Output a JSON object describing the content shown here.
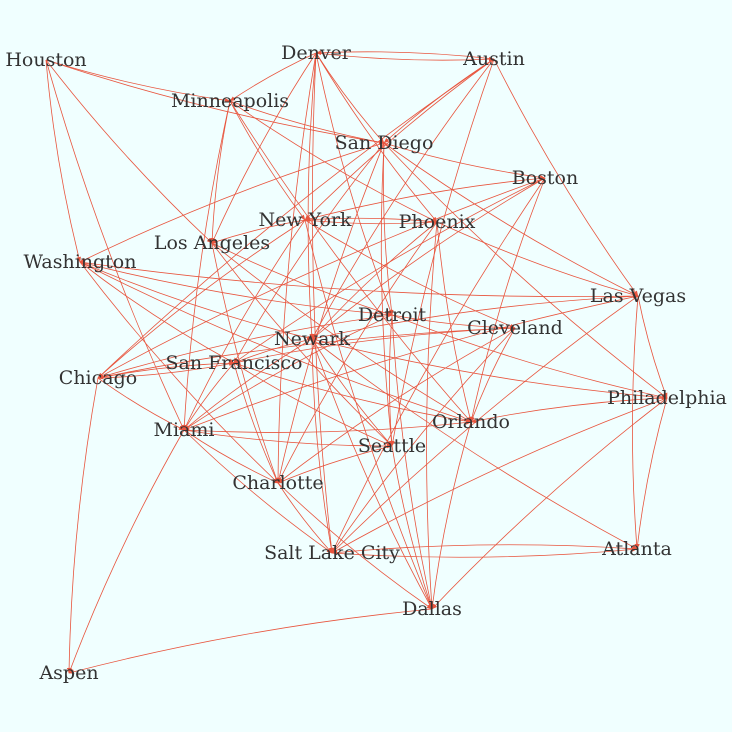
{
  "colors": {
    "background": "#F0FFFF",
    "edge": "#E8553E",
    "label": "#333333"
  },
  "nodes": [
    {
      "id": "Houston",
      "label": "Houston"
    },
    {
      "id": "Denver",
      "label": "Denver"
    },
    {
      "id": "Austin",
      "label": "Austin"
    },
    {
      "id": "Minneapolis",
      "label": "Minneapolis"
    },
    {
      "id": "San Diego",
      "label": "San Diego"
    },
    {
      "id": "Boston",
      "label": "Boston"
    },
    {
      "id": "New York",
      "label": "New York"
    },
    {
      "id": "Phoenix",
      "label": "Phoenix"
    },
    {
      "id": "Los Angeles",
      "label": "Los Angeles"
    },
    {
      "id": "Washington",
      "label": "Washington"
    },
    {
      "id": "Las Vegas",
      "label": "Las Vegas"
    },
    {
      "id": "Detroit",
      "label": "Detroit"
    },
    {
      "id": "Cleveland",
      "label": "Cleveland"
    },
    {
      "id": "Newark",
      "label": "Newark"
    },
    {
      "id": "San Francisco",
      "label": "San Francisco"
    },
    {
      "id": "Chicago",
      "label": "Chicago"
    },
    {
      "id": "Philadelphia",
      "label": "Philadelphia"
    },
    {
      "id": "Orlando",
      "label": "Orlando"
    },
    {
      "id": "Miami",
      "label": "Miami"
    },
    {
      "id": "Seattle",
      "label": "Seattle"
    },
    {
      "id": "Charlotte",
      "label": "Charlotte"
    },
    {
      "id": "Salt Lake City",
      "label": "Salt Lake City"
    },
    {
      "id": "Atlanta",
      "label": "Atlanta"
    },
    {
      "id": "Dallas",
      "label": "Dallas"
    },
    {
      "id": "Aspen",
      "label": "Aspen"
    }
  ],
  "edges": [
    [
      "Denver",
      "Austin"
    ],
    [
      "Austin",
      "Denver"
    ],
    [
      "Houston",
      "Washington"
    ],
    [
      "Houston",
      "Minneapolis"
    ],
    [
      "Houston",
      "San Diego"
    ],
    [
      "Houston",
      "Miami"
    ],
    [
      "Houston",
      "Los Angeles"
    ],
    [
      "Denver",
      "San Diego"
    ],
    [
      "Denver",
      "Minneapolis"
    ],
    [
      "Denver",
      "Charlotte"
    ],
    [
      "Denver",
      "Los Angeles"
    ],
    [
      "Denver",
      "Phoenix"
    ],
    [
      "Denver",
      "Salt Lake City"
    ],
    [
      "Denver",
      "Newark"
    ],
    [
      "Denver",
      "Detroit"
    ],
    [
      "Austin",
      "San Diego"
    ],
    [
      "Austin",
      "Las Vegas"
    ],
    [
      "Austin",
      "New York"
    ],
    [
      "Austin",
      "Chicago"
    ],
    [
      "Austin",
      "Newark"
    ],
    [
      "Austin",
      "Seattle"
    ],
    [
      "Minneapolis",
      "San Diego"
    ],
    [
      "Minneapolis",
      "Los Angeles"
    ],
    [
      "Minneapolis",
      "Miami"
    ],
    [
      "Minneapolis",
      "Phoenix"
    ],
    [
      "Minneapolis",
      "Orlando"
    ],
    [
      "Minneapolis",
      "New York"
    ],
    [
      "San Diego",
      "Boston"
    ],
    [
      "San Diego",
      "Las Vegas"
    ],
    [
      "San Diego",
      "Washington"
    ],
    [
      "San Diego",
      "San Francisco"
    ],
    [
      "San Diego",
      "Charlotte"
    ],
    [
      "San Diego",
      "Philadelphia"
    ],
    [
      "San Diego",
      "Seattle"
    ],
    [
      "San Diego",
      "Detroit"
    ],
    [
      "Boston",
      "New York"
    ],
    [
      "Boston",
      "San Francisco"
    ],
    [
      "Boston",
      "Chicago"
    ],
    [
      "Boston",
      "Orlando"
    ],
    [
      "Boston",
      "Salt Lake City"
    ],
    [
      "Boston",
      "Newark"
    ],
    [
      "New York",
      "Phoenix"
    ],
    [
      "Phoenix",
      "New York"
    ],
    [
      "New York",
      "Los Angeles"
    ],
    [
      "New York",
      "Chicago"
    ],
    [
      "New York",
      "Miami"
    ],
    [
      "New York",
      "Cleveland"
    ],
    [
      "New York",
      "Dallas"
    ],
    [
      "Phoenix",
      "Las Vegas"
    ],
    [
      "Phoenix",
      "Orlando"
    ],
    [
      "Phoenix",
      "Charlotte"
    ],
    [
      "Phoenix",
      "Newark"
    ],
    [
      "Phoenix",
      "Dallas"
    ],
    [
      "Los Angeles",
      "Detroit"
    ],
    [
      "Los Angeles",
      "Orlando"
    ],
    [
      "Los Angeles",
      "Charlotte"
    ],
    [
      "Los Angeles",
      "Seattle"
    ],
    [
      "Washington",
      "Las Vegas"
    ],
    [
      "Washington",
      "Newark"
    ],
    [
      "Washington",
      "San Francisco"
    ],
    [
      "Washington",
      "Orlando"
    ],
    [
      "Washington",
      "Charlotte"
    ],
    [
      "Washington",
      "Detroit"
    ],
    [
      "Las Vegas",
      "Philadelphia"
    ],
    [
      "Las Vegas",
      "Atlanta"
    ],
    [
      "Las Vegas",
      "Salt Lake City"
    ],
    [
      "Las Vegas",
      "Newark"
    ],
    [
      "Las Vegas",
      "Miami"
    ],
    [
      "Detroit",
      "Cleveland"
    ],
    [
      "Detroit",
      "Philadelphia"
    ],
    [
      "Detroit",
      "Chicago"
    ],
    [
      "Detroit",
      "Seattle"
    ],
    [
      "Detroit",
      "Dallas"
    ],
    [
      "Detroit",
      "Miami"
    ],
    [
      "Cleveland",
      "Chicago"
    ],
    [
      "Cleveland",
      "Orlando"
    ],
    [
      "Cleveland",
      "Charlotte"
    ],
    [
      "Cleveland",
      "San Francisco"
    ],
    [
      "Cleveland",
      "Salt Lake City"
    ],
    [
      "Newark",
      "San Francisco"
    ],
    [
      "Newark",
      "Miami"
    ],
    [
      "Newark",
      "Seattle"
    ],
    [
      "Newark",
      "Dallas"
    ],
    [
      "Newark",
      "Atlanta"
    ],
    [
      "Newark",
      "Salt Lake City"
    ],
    [
      "Newark",
      "Philadelphia"
    ],
    [
      "San Francisco",
      "Chicago"
    ],
    [
      "Chicago",
      "San Francisco"
    ],
    [
      "San Francisco",
      "Miami"
    ],
    [
      "San Francisco",
      "Orlando"
    ],
    [
      "San Francisco",
      "Charlotte"
    ],
    [
      "San Francisco",
      "Seattle"
    ],
    [
      "Chicago",
      "Miami"
    ],
    [
      "Chicago",
      "Aspen"
    ],
    [
      "Philadelphia",
      "Orlando"
    ],
    [
      "Philadelphia",
      "Atlanta"
    ],
    [
      "Philadelphia",
      "Dallas"
    ],
    [
      "Philadelphia",
      "Salt Lake City"
    ],
    [
      "Miami",
      "Seattle"
    ],
    [
      "Miami",
      "Charlotte"
    ],
    [
      "Miami",
      "Aspen"
    ],
    [
      "Miami",
      "Salt Lake City"
    ],
    [
      "Miami",
      "Orlando"
    ],
    [
      "Seattle",
      "Dallas"
    ],
    [
      "Seattle",
      "Charlotte"
    ],
    [
      "Charlotte",
      "Salt Lake City"
    ],
    [
      "Charlotte",
      "Dallas"
    ],
    [
      "Salt Lake City",
      "Atlanta"
    ],
    [
      "Atlanta",
      "Salt Lake City"
    ],
    [
      "Dallas",
      "Aspen"
    ],
    [
      "Orlando",
      "Dallas"
    ]
  ]
}
